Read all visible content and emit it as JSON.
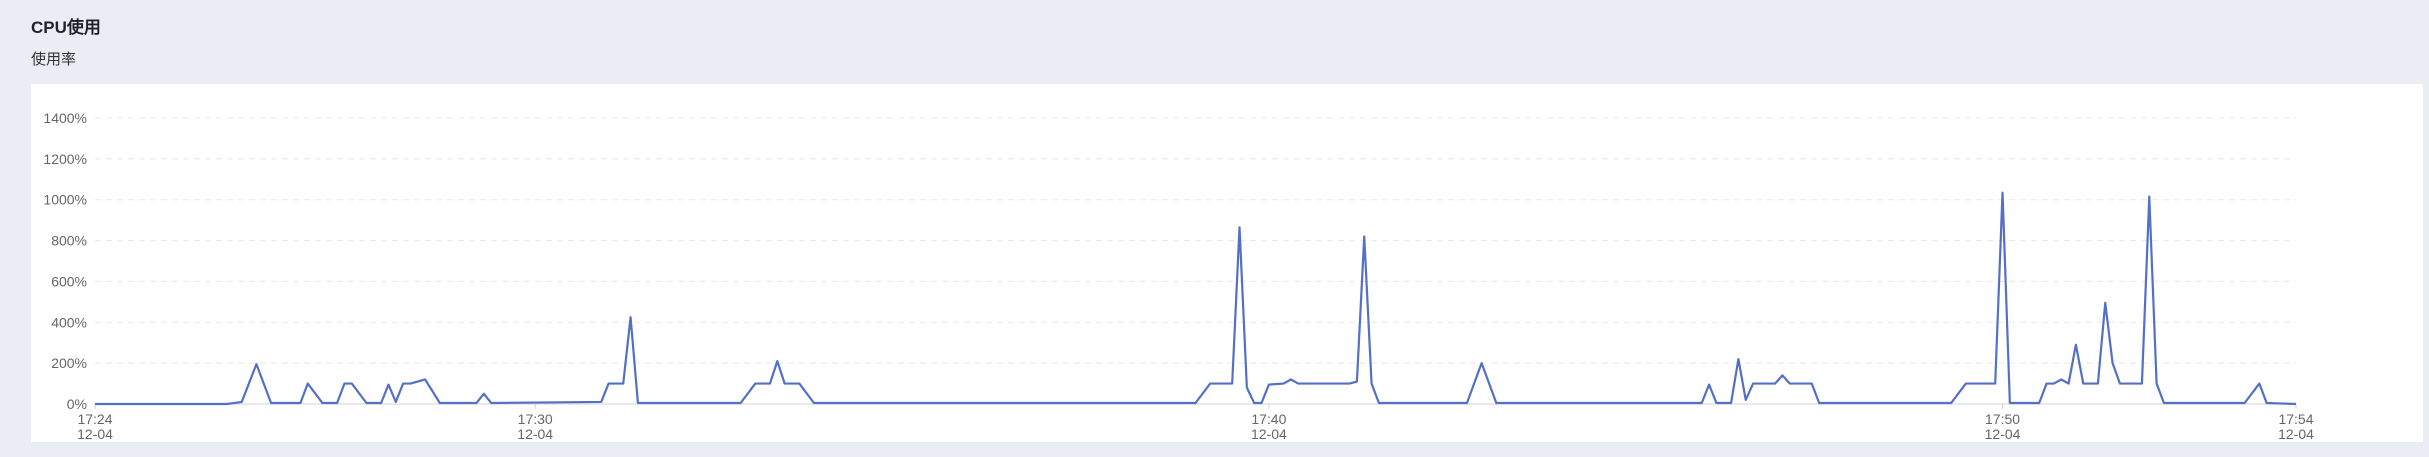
{
  "panel": {
    "title": "CPU使用",
    "subtitle": "使用率"
  },
  "chart_data": {
    "type": "line",
    "title": "CPU使用",
    "ylabel": "",
    "xlabel": "",
    "ylim": [
      0,
      1400
    ],
    "y_ticks": [
      "0%",
      "200%",
      "400%",
      "600%",
      "800%",
      "1000%",
      "1200%",
      "1400%"
    ],
    "y_tick_values": [
      0,
      200,
      400,
      600,
      800,
      1000,
      1200,
      1400
    ],
    "x_unit": "minutes",
    "xlim": [
      "12-04 17:24",
      "12-04 17:54"
    ],
    "x_ticks": [
      {
        "time": "17:24",
        "date": "12-04",
        "value": "12-04 17:24"
      },
      {
        "time": "17:30",
        "date": "12-04",
        "value": "12-04 17:30"
      },
      {
        "time": "17:40",
        "date": "12-04",
        "value": "12-04 17:40"
      },
      {
        "time": "17:50",
        "date": "12-04",
        "value": "12-04 17:50"
      },
      {
        "time": "17:54",
        "date": "12-04",
        "value": "12-04 17:54"
      }
    ],
    "grid": true,
    "line_color": "#5470c6",
    "series": [
      {
        "points": [
          [
            "12-04 17:24:00",
            0
          ],
          [
            "12-04 17:25:48",
            0
          ],
          [
            "12-04 17:26:00",
            10
          ],
          [
            "12-04 17:26:12",
            195
          ],
          [
            "12-04 17:26:24",
            5
          ],
          [
            "12-04 17:26:48",
            5
          ],
          [
            "12-04 17:26:54",
            100
          ],
          [
            "12-04 17:27:06",
            5
          ],
          [
            "12-04 17:27:18",
            5
          ],
          [
            "12-04 17:27:24",
            100
          ],
          [
            "12-04 17:27:30",
            100
          ],
          [
            "12-04 17:27:42",
            5
          ],
          [
            "12-04 17:27:54",
            5
          ],
          [
            "12-04 17:28:00",
            95
          ],
          [
            "12-04 17:28:06",
            10
          ],
          [
            "12-04 17:28:12",
            100
          ],
          [
            "12-04 17:28:18",
            100
          ],
          [
            "12-04 17:28:30",
            120
          ],
          [
            "12-04 17:28:42",
            5
          ],
          [
            "12-04 17:29:12",
            5
          ],
          [
            "12-04 17:29:18",
            50
          ],
          [
            "12-04 17:29:24",
            5
          ],
          [
            "12-04 17:30:54",
            10
          ],
          [
            "12-04 17:31:00",
            100
          ],
          [
            "12-04 17:31:12",
            100
          ],
          [
            "12-04 17:31:18",
            425
          ],
          [
            "12-04 17:31:24",
            5
          ],
          [
            "12-04 17:32:48",
            5
          ],
          [
            "12-04 17:33:00",
            100
          ],
          [
            "12-04 17:33:12",
            100
          ],
          [
            "12-04 17:33:18",
            210
          ],
          [
            "12-04 17:33:24",
            100
          ],
          [
            "12-04 17:33:36",
            100
          ],
          [
            "12-04 17:33:48",
            5
          ],
          [
            "12-04 17:39:00",
            5
          ],
          [
            "12-04 17:39:12",
            100
          ],
          [
            "12-04 17:39:30",
            100
          ],
          [
            "12-04 17:39:36",
            865
          ],
          [
            "12-04 17:39:42",
            80
          ],
          [
            "12-04 17:39:48",
            5
          ],
          [
            "12-04 17:39:54",
            5
          ],
          [
            "12-04 17:40:00",
            95
          ],
          [
            "12-04 17:40:12",
            100
          ],
          [
            "12-04 17:40:18",
            120
          ],
          [
            "12-04 17:40:24",
            100
          ],
          [
            "12-04 17:40:36",
            100
          ],
          [
            "12-04 17:41:06",
            100
          ],
          [
            "12-04 17:41:12",
            110
          ],
          [
            "12-04 17:41:18",
            820
          ],
          [
            "12-04 17:41:24",
            100
          ],
          [
            "12-04 17:41:30",
            5
          ],
          [
            "12-04 17:42:42",
            5
          ],
          [
            "12-04 17:42:54",
            200
          ],
          [
            "12-04 17:43:06",
            5
          ],
          [
            "12-04 17:45:54",
            5
          ],
          [
            "12-04 17:46:00",
            95
          ],
          [
            "12-04 17:46:06",
            5
          ],
          [
            "12-04 17:46:18",
            5
          ],
          [
            "12-04 17:46:24",
            220
          ],
          [
            "12-04 17:46:30",
            20
          ],
          [
            "12-04 17:46:36",
            100
          ],
          [
            "12-04 17:46:54",
            100
          ],
          [
            "12-04 17:47:00",
            140
          ],
          [
            "12-04 17:47:06",
            100
          ],
          [
            "12-04 17:47:24",
            100
          ],
          [
            "12-04 17:47:30",
            5
          ],
          [
            "12-04 17:49:18",
            5
          ],
          [
            "12-04 17:49:30",
            100
          ],
          [
            "12-04 17:49:54",
            100
          ],
          [
            "12-04 17:50:00",
            1035
          ],
          [
            "12-04 17:50:06",
            5
          ],
          [
            "12-04 17:50:30",
            5
          ],
          [
            "12-04 17:50:36",
            100
          ],
          [
            "12-04 17:50:42",
            100
          ],
          [
            "12-04 17:50:48",
            120
          ],
          [
            "12-04 17:50:54",
            100
          ],
          [
            "12-04 17:51:00",
            290
          ],
          [
            "12-04 17:51:06",
            100
          ],
          [
            "12-04 17:51:18",
            100
          ],
          [
            "12-04 17:51:24",
            495
          ],
          [
            "12-04 17:51:30",
            200
          ],
          [
            "12-04 17:51:36",
            100
          ],
          [
            "12-04 17:51:54",
            100
          ],
          [
            "12-04 17:52:00",
            1015
          ],
          [
            "12-04 17:52:06",
            100
          ],
          [
            "12-04 17:52:12",
            5
          ],
          [
            "12-04 17:53:18",
            5
          ],
          [
            "12-04 17:53:30",
            100
          ],
          [
            "12-04 17:53:36",
            5
          ],
          [
            "12-04 17:54:00",
            0
          ]
        ]
      }
    ]
  }
}
